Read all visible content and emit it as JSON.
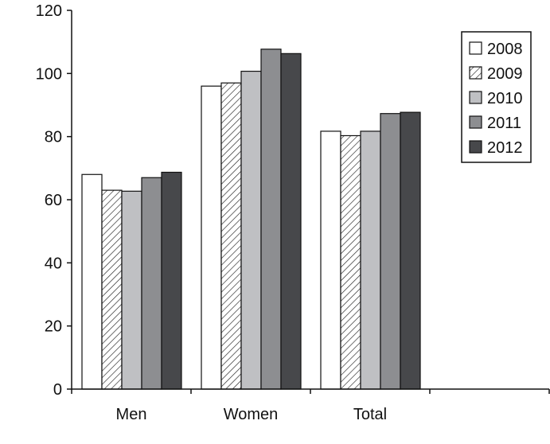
{
  "chart_data": {
    "type": "bar",
    "title": "",
    "xlabel": "",
    "ylabel": "",
    "categories": [
      "Men",
      "Women",
      "Total"
    ],
    "ylim": [
      0,
      120
    ],
    "yticks": [
      "0",
      "20",
      "40",
      "60",
      "80",
      "100",
      "120"
    ],
    "grid": false,
    "legend_position": "top-right",
    "series": [
      {
        "name": "2008",
        "values": [
          68,
          96,
          81.7
        ],
        "fill": "#ffffff",
        "pattern": "none"
      },
      {
        "name": "2009",
        "values": [
          63,
          97,
          80.3
        ],
        "fill": "#ffffff",
        "pattern": "diagonal-hatch"
      },
      {
        "name": "2010",
        "values": [
          62.7,
          100.7,
          81.7
        ],
        "fill": "#bfc0c3",
        "pattern": "none"
      },
      {
        "name": "2011",
        "values": [
          67,
          107.7,
          87.3
        ],
        "fill": "#8d8e91",
        "pattern": "none"
      },
      {
        "name": "2012",
        "values": [
          68.7,
          106.3,
          87.7
        ],
        "fill": "#47484b",
        "pattern": "none"
      }
    ]
  }
}
